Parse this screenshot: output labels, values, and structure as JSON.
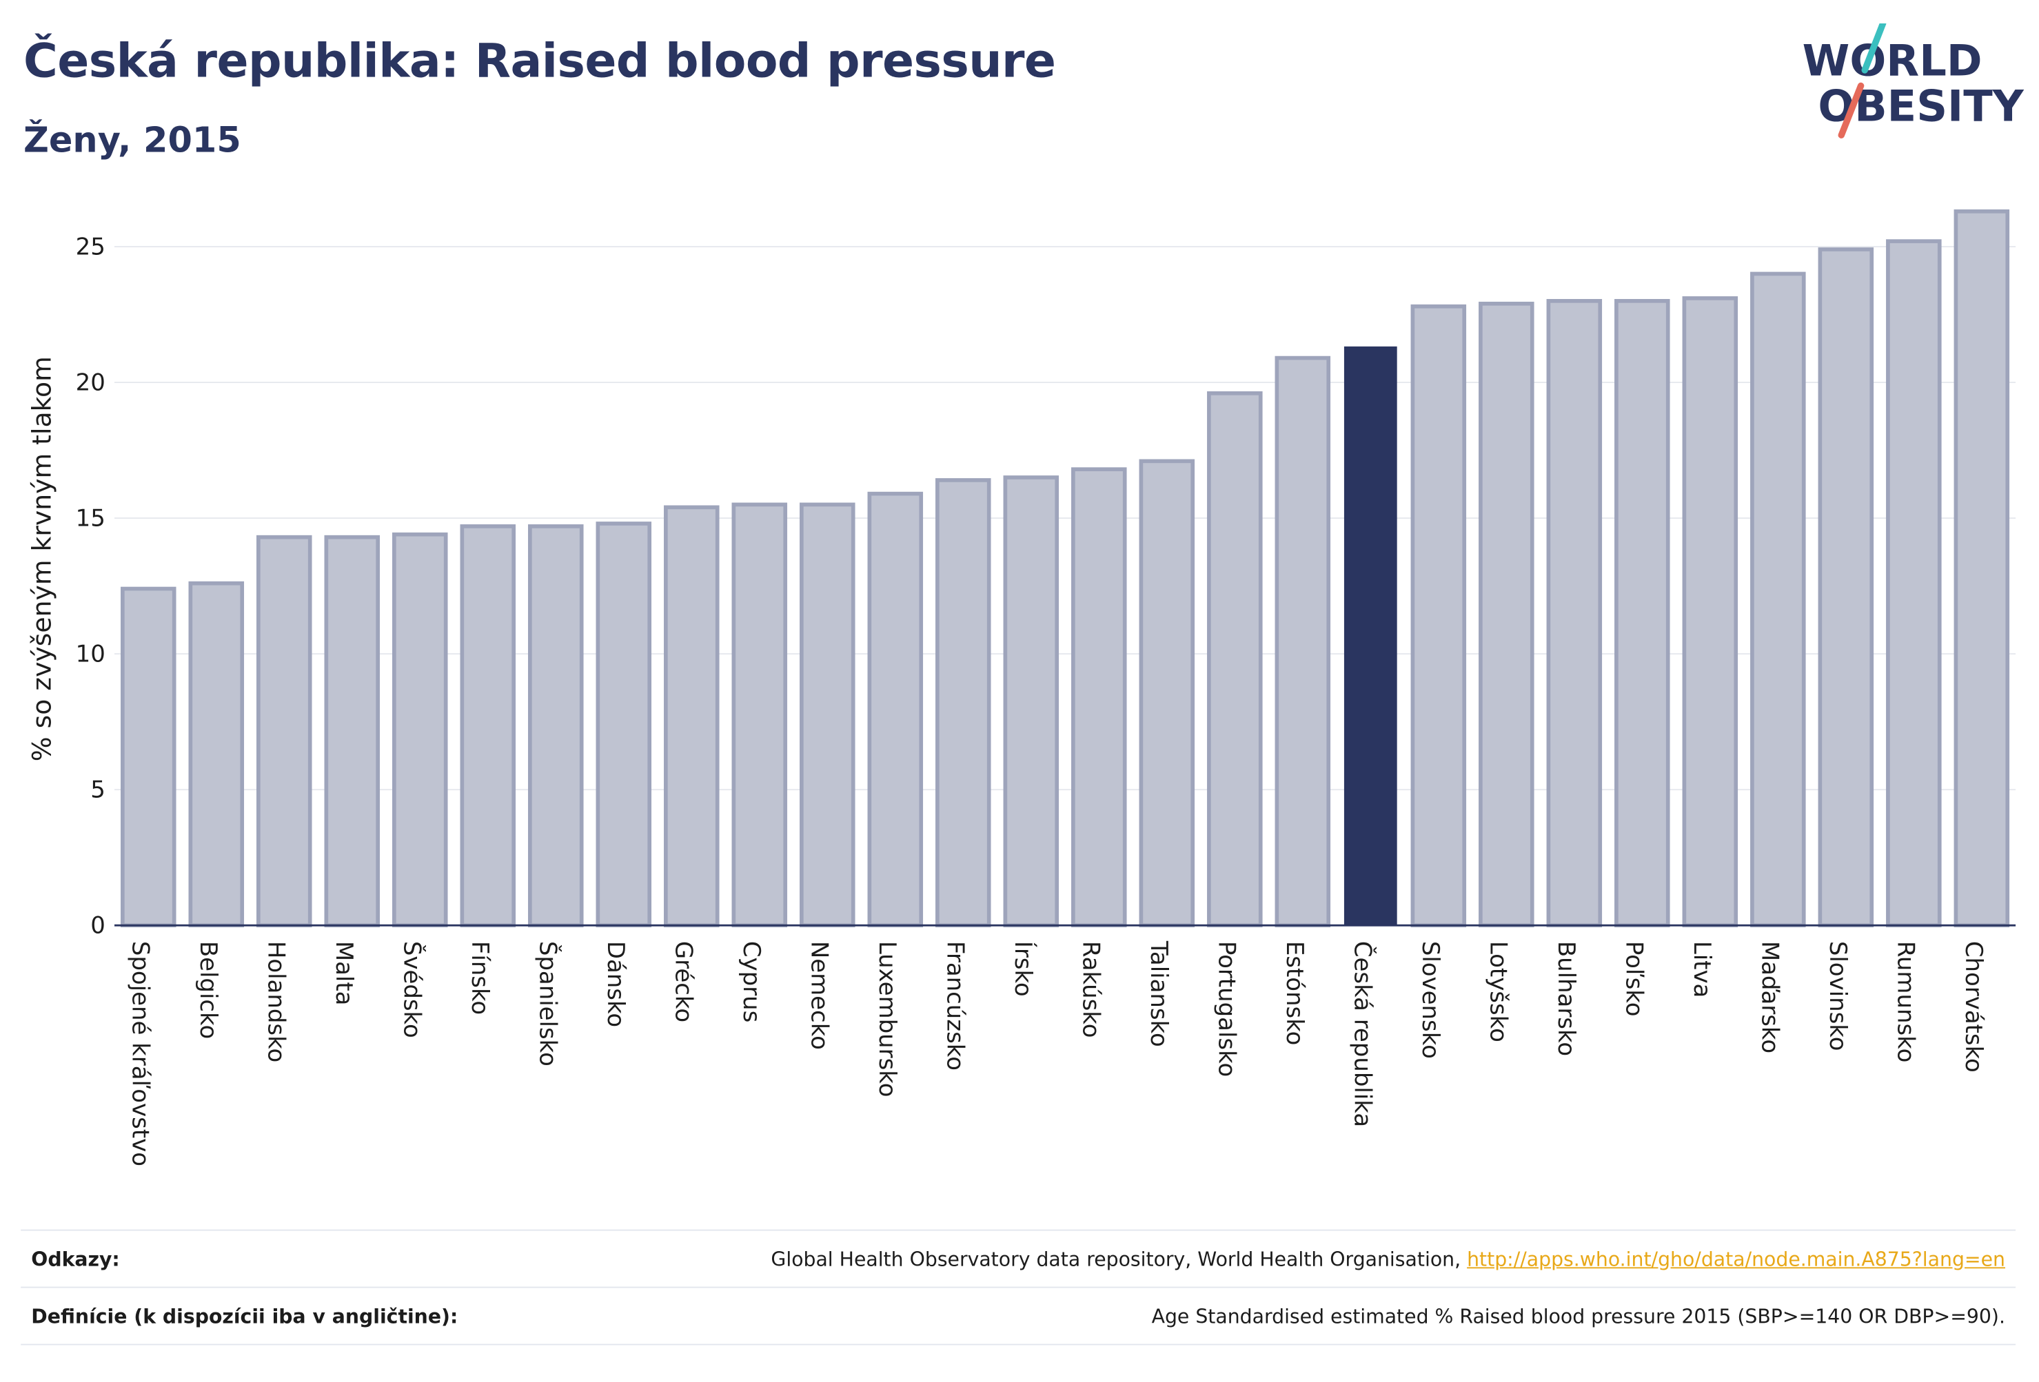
{
  "header": {
    "title": "Česká republika: Raised blood pressure",
    "subtitle": "Ženy, 2015"
  },
  "logo": {
    "line1": "WORLD",
    "line2": "OBESITY",
    "accent_colors": [
      "#3bbfbf",
      "#e56a5a"
    ]
  },
  "colors": {
    "bar": "#bfc3d1",
    "bar_border": "#9ea4bb",
    "highlight": "#2a3560",
    "text": "#2a3560"
  },
  "chart_data": {
    "type": "bar",
    "title": "Česká republika: Raised blood pressure",
    "subtitle": "Ženy, 2015",
    "xlabel": "",
    "ylabel": "% so zvýšeným krvným tlakom",
    "ylim": [
      0,
      27
    ],
    "yticks": [
      0,
      5,
      10,
      15,
      20,
      25
    ],
    "grid": true,
    "highlight": "Česká republika",
    "categories": [
      "Spojené kráľovstvo",
      "Belgicko",
      "Holandsko",
      "Malta",
      "Švédsko",
      "Fínsko",
      "Španielsko",
      "Dánsko",
      "Grécko",
      "Cyprus",
      "Nemecko",
      "Luxembursko",
      "Francúzsko",
      "Írsko",
      "Rakúsko",
      "Taliansko",
      "Portugalsko",
      "Estónsko",
      "Česká republika",
      "Slovensko",
      "Lotyšsko",
      "Bulharsko",
      "Poľsko",
      "Litva",
      "Maďarsko",
      "Slovinsko",
      "Rumunsko",
      "Chorvátsko"
    ],
    "values": [
      12.4,
      12.6,
      14.3,
      14.3,
      14.4,
      14.7,
      14.7,
      14.8,
      15.4,
      15.5,
      15.5,
      15.9,
      16.4,
      16.5,
      16.8,
      17.1,
      19.6,
      20.9,
      21.3,
      22.8,
      22.9,
      23.0,
      23.0,
      23.1,
      24.0,
      24.9,
      25.2,
      26.3
    ]
  },
  "footer": {
    "refs_label": "Odkazy:",
    "refs_text": "Global Health Observatory data repository, World Health Organisation, ",
    "refs_link": "http://apps.who.int/gho/data/node.main.A875?lang=en",
    "defs_label": "Definície (k dispozícii iba v angličtine):",
    "defs_text": "Age Standardised estimated % Raised blood pressure 2015 (SBP>=140 OR DBP>=90)."
  }
}
